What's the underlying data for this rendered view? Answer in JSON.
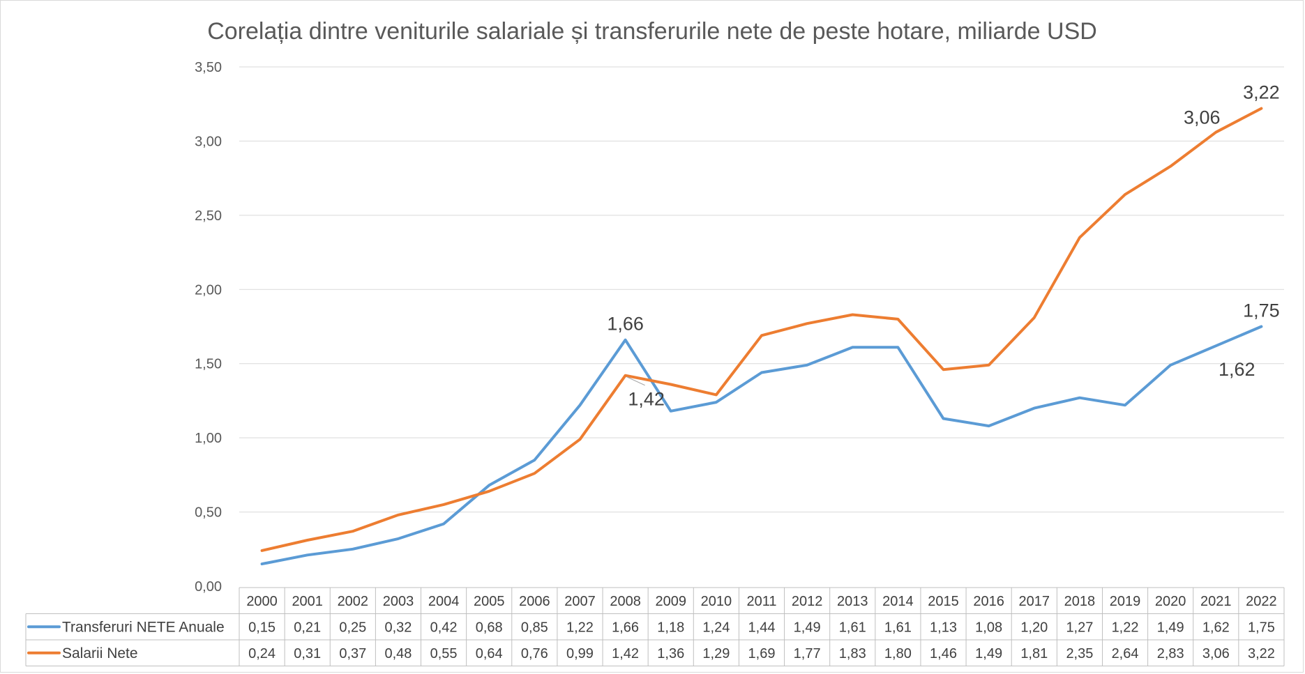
{
  "chart_data": {
    "type": "line",
    "title": "Corelația dintre veniturile salariale și transferurile nete de peste hotare, miliarde USD",
    "categories": [
      "2000",
      "2001",
      "2002",
      "2003",
      "2004",
      "2005",
      "2006",
      "2007",
      "2008",
      "2009",
      "2010",
      "2011",
      "2012",
      "2013",
      "2014",
      "2015",
      "2016",
      "2017",
      "2018",
      "2019",
      "2020",
      "2021",
      "2022"
    ],
    "ylim": [
      0,
      3.5
    ],
    "yticks": [
      "0,00",
      "0,50",
      "1,00",
      "1,50",
      "2,00",
      "2,50",
      "3,00",
      "3,50"
    ],
    "grid": true,
    "legend": "data-table",
    "series": [
      {
        "name": "Transferuri NETE Anuale",
        "color": "#5b9bd5",
        "values": [
          0.15,
          0.21,
          0.25,
          0.32,
          0.42,
          0.68,
          0.85,
          1.22,
          1.66,
          1.18,
          1.24,
          1.44,
          1.49,
          1.61,
          1.61,
          1.13,
          1.08,
          1.2,
          1.27,
          1.22,
          1.49,
          1.62,
          1.75
        ],
        "table_values": [
          "0,15",
          "0,21",
          "0,25",
          "0,32",
          "0,42",
          "0,68",
          "0,85",
          "1,22",
          "1,66",
          "1,18",
          "1,24",
          "1,44",
          "1,49",
          "1,61",
          "1,61",
          "1,13",
          "1,08",
          "1,20",
          "1,27",
          "1,22",
          "1,49",
          "1,62",
          "1,75"
        ]
      },
      {
        "name": "Salarii Nete",
        "color": "#ed7d31",
        "values": [
          0.24,
          0.31,
          0.37,
          0.48,
          0.55,
          0.64,
          0.76,
          0.99,
          1.42,
          1.36,
          1.29,
          1.69,
          1.77,
          1.83,
          1.8,
          1.46,
          1.49,
          1.81,
          2.35,
          2.64,
          2.83,
          3.06,
          3.22
        ],
        "table_values": [
          "0,24",
          "0,31",
          "0,37",
          "0,48",
          "0,55",
          "0,64",
          "0,76",
          "0,99",
          "1,42",
          "1,36",
          "1,29",
          "1,69",
          "1,77",
          "1,83",
          "1,80",
          "1,46",
          "1,49",
          "1,81",
          "2,35",
          "2,64",
          "2,83",
          "3,06",
          "3,22"
        ]
      }
    ],
    "annotations": [
      {
        "series": 0,
        "index": 8,
        "text": "1,66",
        "placement": "above"
      },
      {
        "series": 1,
        "index": 8,
        "text": "1,42",
        "placement": "below-right"
      },
      {
        "series": 0,
        "index": 22,
        "text": "1,75",
        "placement": "above"
      },
      {
        "series": 0,
        "index": 21,
        "text": "1,62",
        "placement": "below-right"
      },
      {
        "series": 1,
        "index": 21,
        "text": "3,06",
        "placement": "above-left"
      },
      {
        "series": 1,
        "index": 22,
        "text": "3,22",
        "placement": "above"
      }
    ]
  }
}
